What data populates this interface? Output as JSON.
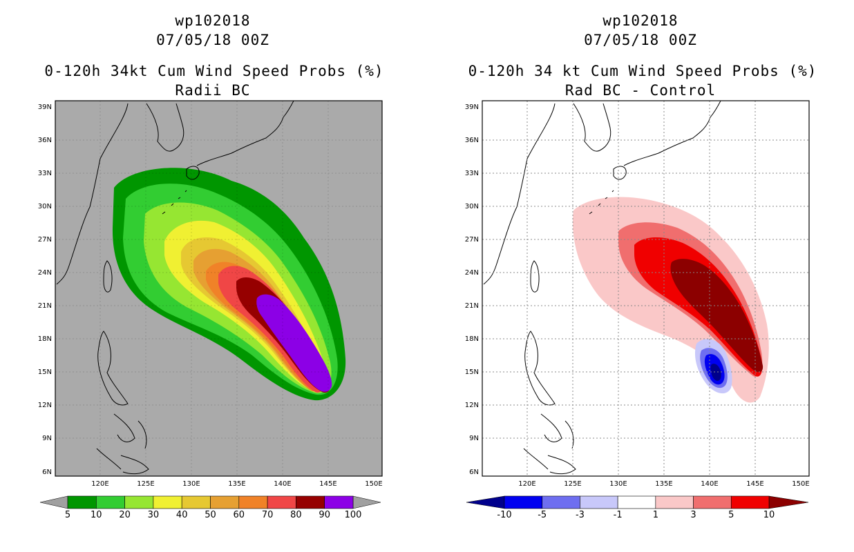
{
  "left": {
    "title_lines": [
      "wp102018",
      "07/05/18 00Z",
      "0-120h 34kt Cum Wind Speed Probs (%)",
      "Radii BC"
    ],
    "lat_labels": [
      "39N",
      "36N",
      "33N",
      "30N",
      "27N",
      "24N",
      "21N",
      "18N",
      "15N",
      "12N",
      "9N",
      "6N"
    ],
    "lon_labels": [
      "120E",
      "125E",
      "130E",
      "135E",
      "140E",
      "145E",
      "150E"
    ],
    "background_color": "#aaaaaa",
    "colorbar": {
      "levels": [
        "5",
        "10",
        "20",
        "30",
        "40",
        "50",
        "60",
        "70",
        "80",
        "90",
        "100"
      ],
      "colors": [
        "#009600",
        "#32cd32",
        "#96e632",
        "#f0f032",
        "#e6c832",
        "#e6a032",
        "#f08228",
        "#f04646",
        "#960000",
        "#8c00e6"
      ],
      "end_color": "#a0a0a0"
    }
  },
  "right": {
    "title_lines": [
      "wp102018",
      "07/05/18 00Z",
      "0-120h 34 kt Cum Wind Speed Probs (%)",
      "Rad BC - Control"
    ],
    "lat_labels": [
      "39N",
      "36N",
      "33N",
      "30N",
      "27N",
      "24N",
      "21N",
      "18N",
      "15N",
      "12N",
      "9N",
      "6N"
    ],
    "lon_labels": [
      "120E",
      "125E",
      "130E",
      "135E",
      "140E",
      "145E",
      "150E"
    ],
    "background_color": "#ffffff",
    "colorbar": {
      "levels": [
        "-10",
        "-5",
        "-3",
        "-1",
        "1",
        "3",
        "5",
        "10"
      ],
      "colors": [
        "#00008c",
        "#0000f0",
        "#6e6ef0",
        "#c8c8fa",
        "#ffffff",
        "#fac8c8",
        "#f06e6e",
        "#f00000",
        "#8c0000"
      ]
    }
  }
}
